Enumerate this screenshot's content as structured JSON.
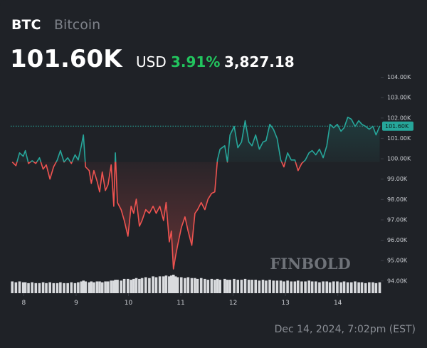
{
  "header": {
    "symbol": "BTC",
    "name": "Bitcoin",
    "price": "101.60K",
    "currency": "USD",
    "change_percent": "3.91%",
    "change_value": "3,827.18"
  },
  "footer": {
    "timestamp": "Dec 14, 2024, 7:02pm (EST)"
  },
  "watermark": "FINBOLD",
  "chart_data": {
    "type": "line",
    "x": [
      7.78,
      7.85,
      7.92,
      7.99,
      8.03,
      8.09,
      8.16,
      8.23,
      8.3,
      8.37,
      8.43,
      8.5,
      8.57,
      8.64,
      8.7,
      8.77,
      8.84,
      8.91,
      8.98,
      9.04,
      9.1,
      9.14,
      9.18,
      9.25,
      9.29,
      9.34,
      9.4,
      9.45,
      9.5,
      9.56,
      9.61,
      9.67,
      9.72,
      9.75,
      9.79,
      9.86,
      9.92,
      9.99,
      10.05,
      10.1,
      10.15,
      10.21,
      10.26,
      10.33,
      10.4,
      10.47,
      10.53,
      10.6,
      10.67,
      10.72,
      10.78,
      10.82,
      10.86,
      10.9,
      10.94,
      11.01,
      11.08,
      11.14,
      11.21,
      11.27,
      11.32,
      11.39,
      11.46,
      11.52,
      11.59,
      11.65,
      11.7,
      11.75,
      11.84,
      11.89,
      11.94,
      12.02,
      12.09,
      12.16,
      12.23,
      12.3,
      12.36,
      12.43,
      12.5,
      12.57,
      12.63,
      12.7,
      12.77,
      12.84,
      12.91,
      12.97,
      13.04,
      13.11,
      13.18,
      13.24,
      13.31,
      13.38,
      13.45,
      13.51,
      13.58,
      13.65,
      13.72,
      13.79,
      13.85,
      13.92,
      13.99,
      14.06,
      14.12,
      14.19,
      14.26,
      14.33,
      14.4,
      14.46,
      14.53,
      14.6,
      14.67,
      14.73,
      14.8
    ],
    "series": [
      {
        "name": "BTC",
        "up_color": "#26a69a",
        "down_color": "#ef5350",
        "values": [
          99.84,
          99.66,
          100.29,
          100.12,
          100.4,
          99.77,
          99.9,
          99.77,
          100.05,
          99.49,
          99.7,
          99.0,
          99.6,
          99.94,
          100.4,
          99.84,
          100.05,
          99.77,
          100.19,
          99.94,
          100.64,
          101.17,
          99.6,
          99.42,
          98.79,
          99.42,
          98.9,
          98.37,
          99.35,
          98.44,
          98.72,
          99.7,
          97.67,
          100.29,
          97.85,
          97.5,
          96.97,
          96.2,
          97.67,
          97.32,
          98.02,
          96.69,
          96.97,
          97.5,
          97.32,
          97.67,
          97.32,
          97.67,
          96.97,
          97.85,
          95.92,
          96.45,
          94.59,
          95.22,
          95.75,
          96.62,
          97.15,
          96.45,
          95.75,
          97.32,
          97.5,
          97.85,
          97.5,
          98.02,
          98.3,
          98.37,
          99.94,
          100.47,
          100.64,
          99.84,
          101.17,
          101.59,
          100.54,
          100.82,
          101.87,
          100.82,
          100.64,
          101.17,
          100.47,
          100.82,
          100.89,
          101.69,
          101.45,
          101.0,
          99.94,
          99.6,
          100.29,
          99.94,
          99.94,
          99.42,
          99.77,
          99.94,
          100.29,
          100.4,
          100.19,
          100.47,
          100.05,
          100.64,
          101.69,
          101.52,
          101.69,
          101.35,
          101.52,
          102.04,
          101.94,
          101.59,
          101.87,
          101.69,
          101.59,
          101.45,
          101.59,
          101.17,
          101.6
        ]
      }
    ],
    "volume": {
      "color": "#d9dbde",
      "values": [
        14,
        13,
        14,
        13,
        13,
        12,
        13,
        12,
        12,
        13,
        12,
        13,
        12,
        12,
        13,
        12,
        12,
        13,
        12,
        13,
        14,
        15,
        14,
        13,
        14,
        13,
        14,
        14,
        13,
        14,
        14,
        15,
        15,
        16,
        16,
        15,
        17,
        17,
        16,
        17,
        18,
        17,
        18,
        19,
        18,
        20,
        19,
        20,
        20,
        21,
        20,
        21,
        22,
        20,
        19,
        19,
        18,
        19,
        18,
        18,
        17,
        18,
        17,
        16,
        17,
        16,
        17,
        16,
        17,
        16,
        16,
        17,
        16,
        16,
        17,
        16,
        16,
        16,
        15,
        16,
        15,
        16,
        15,
        15,
        15,
        14,
        15,
        14,
        14,
        15,
        14,
        14,
        15,
        14,
        14,
        13,
        14,
        14,
        13,
        14,
        14,
        13,
        14,
        13,
        13,
        14,
        13,
        13,
        12,
        13,
        13,
        12,
        13
      ]
    },
    "current_price": {
      "value": 101.6,
      "label": "101.60K"
    },
    "xlim": [
      7.75,
      14.82
    ],
    "xticks": [
      8,
      9,
      10,
      11,
      12,
      13,
      14
    ],
    "ylim": [
      93.4,
      104.3
    ],
    "yticks": [
      {
        "value": 94,
        "label": "94.00K"
      },
      {
        "value": 95,
        "label": "95.00K"
      },
      {
        "value": 96,
        "label": "96.00K"
      },
      {
        "value": 97,
        "label": "97.00K"
      },
      {
        "value": 98,
        "label": "98.00K"
      },
      {
        "value": 99,
        "label": "99.00K"
      },
      {
        "value": 100,
        "label": "100.00K"
      },
      {
        "value": 101,
        "label": "101.00K"
      },
      {
        "value": 102,
        "label": "102.00K"
      },
      {
        "value": 103,
        "label": "103.00K"
      },
      {
        "value": 104,
        "label": "104.00K"
      }
    ],
    "grid": false
  }
}
